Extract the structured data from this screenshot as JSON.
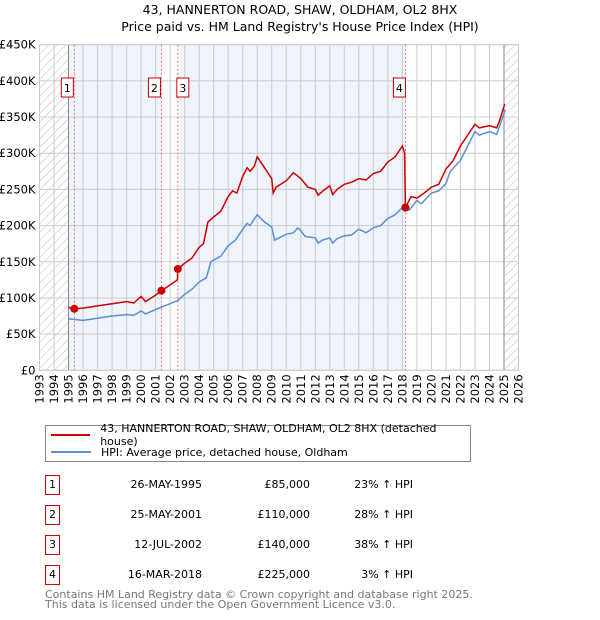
{
  "chart_data": {
    "type": "line",
    "title": "43, HANNERTON ROAD, SHAW, OLDHAM, OL2 8HX",
    "subtitle": "Price paid vs. HM Land Registry's House Price Index (HPI)",
    "xlim": [
      1993,
      2026
    ],
    "ylim": [
      0,
      450000
    ],
    "x_ticks": [
      "1993",
      "1994",
      "1995",
      "1996",
      "1997",
      "1998",
      "1999",
      "2000",
      "2001",
      "2002",
      "2003",
      "2004",
      "2005",
      "2006",
      "2007",
      "2008",
      "2009",
      "2010",
      "2011",
      "2012",
      "2013",
      "2014",
      "2015",
      "2016",
      "2017",
      "2018",
      "2019",
      "2020",
      "2021",
      "2022",
      "2023",
      "2024",
      "2025",
      "2026"
    ],
    "y_ticks": [
      {
        "v": 0,
        "l": "£0"
      },
      {
        "v": 50000,
        "l": "£50K"
      },
      {
        "v": 100000,
        "l": "£100K"
      },
      {
        "v": 150000,
        "l": "£150K"
      },
      {
        "v": 200000,
        "l": "£200K"
      },
      {
        "v": 250000,
        "l": "£250K"
      },
      {
        "v": 300000,
        "l": "£300K"
      },
      {
        "v": 350000,
        "l": "£350K"
      },
      {
        "v": 400000,
        "l": "£400K"
      },
      {
        "v": 450000,
        "l": "£450K"
      }
    ],
    "grid": true,
    "series": [
      {
        "name": "43, HANNERTON ROAD, SHAW, OLDHAM, OL2 8HX (detached house)",
        "color": "#cc0000",
        "x": [
          1995.0,
          1995.4,
          1996,
          1997,
          1998,
          1999,
          1999.5,
          2000,
          2000.3,
          2001,
          2001.4,
          2002,
          2002.5,
          2002.53,
          2003,
          2003.5,
          2004,
          2004.3,
          2004.6,
          2005,
          2005.5,
          2006,
          2006.3,
          2006.6,
          2007,
          2007.3,
          2007.5,
          2007.8,
          2008,
          2008.5,
          2009,
          2009.1,
          2009.3,
          2010,
          2010.5,
          2011,
          2011.5,
          2012,
          2012.2,
          2012.6,
          2013,
          2013.2,
          2013.5,
          2014,
          2014.5,
          2015,
          2015.5,
          2016,
          2016.5,
          2017,
          2017.5,
          2018,
          2018.15,
          2018.21,
          2018.6,
          2019,
          2019.5,
          2020,
          2020.5,
          2021,
          2021.5,
          2022,
          2022.5,
          2023,
          2023.3,
          2024,
          2024.5,
          2024.7,
          2025,
          2025.05
        ],
        "y": [
          87000,
          85000,
          86000,
          89000,
          92000,
          95000,
          93000,
          102000,
          95000,
          104000,
          110000,
          118000,
          125000,
          140000,
          148000,
          155000,
          170000,
          175000,
          205000,
          212000,
          220000,
          240000,
          248000,
          245000,
          268000,
          280000,
          275000,
          282000,
          295000,
          280000,
          265000,
          245000,
          253000,
          262000,
          273000,
          265000,
          253000,
          250000,
          242000,
          249000,
          255000,
          243000,
          250000,
          257000,
          260000,
          265000,
          263000,
          272000,
          275000,
          288000,
          295000,
          310000,
          300000,
          225000,
          240000,
          238000,
          245000,
          253000,
          257000,
          278000,
          290000,
          310000,
          325000,
          340000,
          335000,
          338000,
          335000,
          345000,
          365000,
          368000
        ]
      },
      {
        "name": "HPI: Average price, detached house, Oldham",
        "color": "#5b8fd6",
        "x": [
          1995.0,
          1996,
          1997,
          1998,
          1999,
          1999.5,
          2000,
          2000.3,
          2001,
          2001.5,
          2002,
          2002.5,
          2003,
          2003.5,
          2004,
          2004.5,
          2004.8,
          2005.5,
          2006,
          2006.5,
          2007,
          2007.3,
          2007.5,
          2008,
          2008.5,
          2009,
          2009.2,
          2009.5,
          2010,
          2010.5,
          2010.8,
          2011,
          2011.3,
          2012,
          2012.2,
          2012.5,
          2013,
          2013.2,
          2013.5,
          2014,
          2014.5,
          2015,
          2015.5,
          2016,
          2016.5,
          2017,
          2017.5,
          2018,
          2018.2,
          2018.5,
          2019,
          2019.3,
          2020,
          2020.5,
          2021,
          2021.3,
          2022,
          2022.5,
          2023,
          2023.3,
          2024,
          2024.5,
          2025,
          2025.1
        ],
        "y": [
          71000,
          69000,
          72000,
          75000,
          77000,
          76000,
          82000,
          78000,
          84000,
          88000,
          92000,
          96000,
          105000,
          112000,
          122000,
          128000,
          150000,
          158000,
          172000,
          180000,
          195000,
          203000,
          200000,
          215000,
          205000,
          198000,
          180000,
          183000,
          188000,
          190000,
          197000,
          193000,
          185000,
          183000,
          176000,
          180000,
          183000,
          176000,
          182000,
          186000,
          187000,
          195000,
          190000,
          197000,
          200000,
          210000,
          215000,
          225000,
          220000,
          222000,
          235000,
          230000,
          245000,
          248000,
          258000,
          275000,
          290000,
          310000,
          330000,
          325000,
          330000,
          326000,
          355000,
          360000
        ]
      }
    ],
    "sales": [
      {
        "n": "1",
        "date": "26-MAY-1995",
        "price": "£85,000",
        "hpi": "23% ↑ HPI",
        "x": 1995.4,
        "y": 85000
      },
      {
        "n": "2",
        "date": "25-MAY-2001",
        "price": "£110,000",
        "hpi": "28% ↑ HPI",
        "x": 2001.4,
        "y": 110000
      },
      {
        "n": "3",
        "date": "12-JUL-2002",
        "price": "£140,000",
        "hpi": "38% ↑ HPI",
        "x": 2002.53,
        "y": 140000
      },
      {
        "n": "4",
        "date": "16-MAR-2018",
        "price": "£225,000",
        "hpi": "3% ↑ HPI",
        "x": 2018.21,
        "y": 225000
      }
    ]
  },
  "footer": {
    "line1": "Contains HM Land Registry data © Crown copyright and database right 2025.",
    "line2": "This data is licensed under the Open Government Licence v3.0."
  }
}
